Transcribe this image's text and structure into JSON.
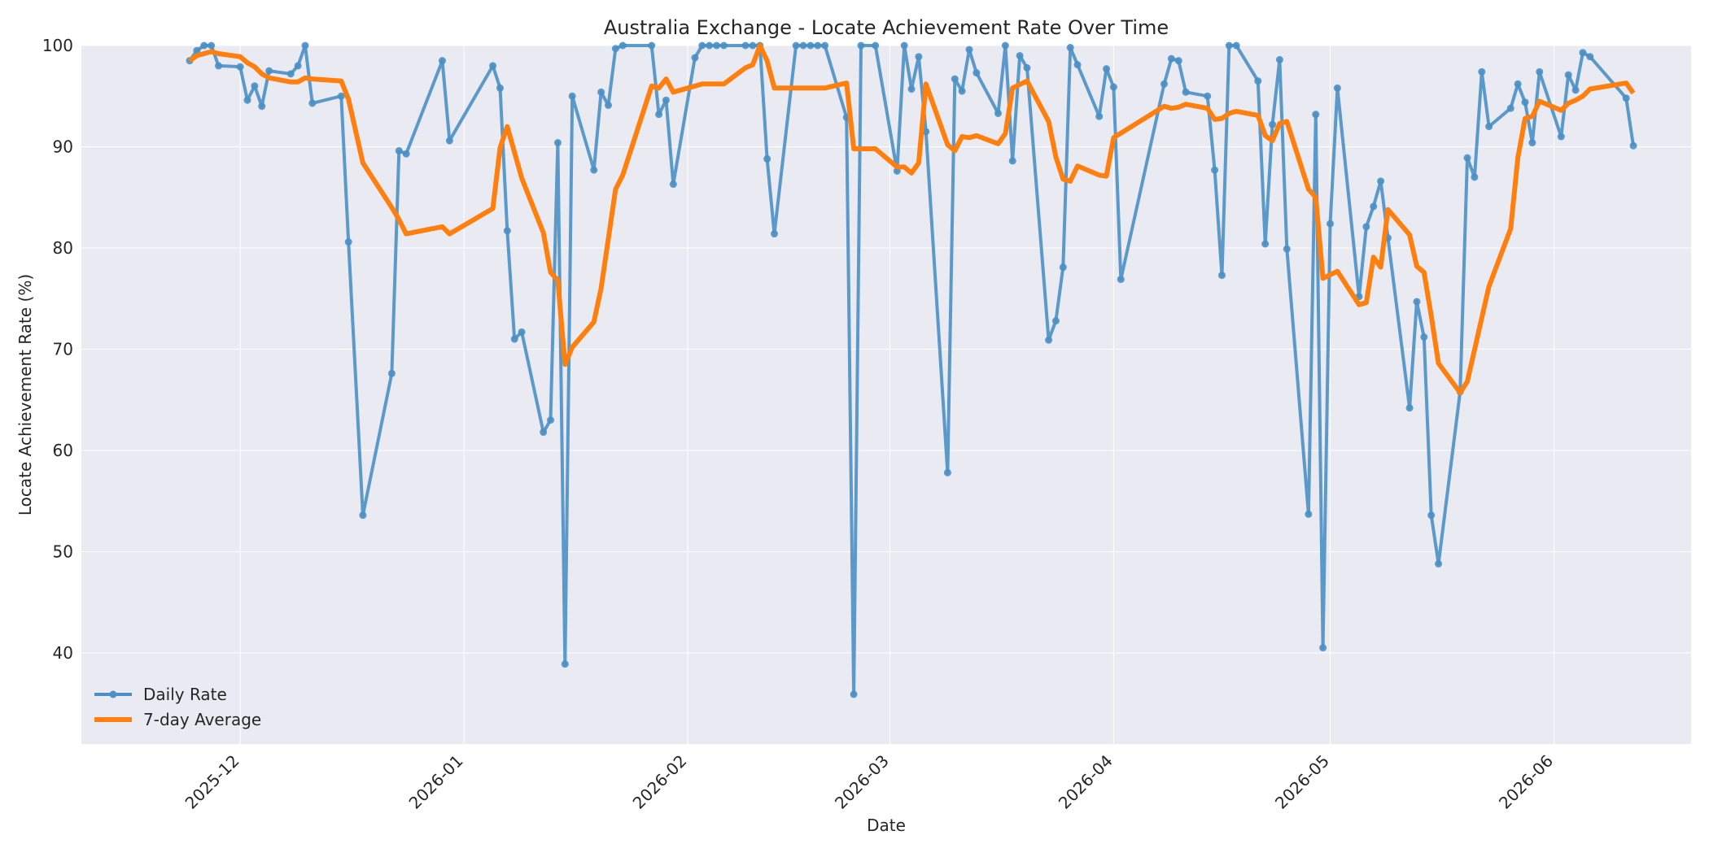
{
  "chart_data": {
    "type": "line",
    "title": "Australia Exchange - Locate Achievement Rate Over Time",
    "xlabel": "Date",
    "ylabel": "Locate Achievement Rate (%)",
    "x_range": [
      "2025-11-09",
      "2026-06-20"
    ],
    "ylim": [
      31,
      100
    ],
    "yticks": [
      40,
      50,
      60,
      70,
      80,
      90,
      100
    ],
    "xticks": [
      {
        "label": "2025-12",
        "date": "2025-12-01"
      },
      {
        "label": "2026-01",
        "date": "2026-01-01"
      },
      {
        "label": "2026-02",
        "date": "2026-02-01"
      },
      {
        "label": "2026-03",
        "date": "2026-03-01"
      },
      {
        "label": "2026-04",
        "date": "2026-04-01"
      },
      {
        "label": "2026-05",
        "date": "2026-05-01"
      },
      {
        "label": "2026-06",
        "date": "2026-06-01"
      }
    ],
    "grid": true,
    "legend_position": "lower-left",
    "series": [
      {
        "name": "Daily Rate",
        "color": "#4a90c4",
        "markers": true,
        "points": [
          [
            "2025-11-24",
            98.5
          ],
          [
            "2025-11-25",
            99.5
          ],
          [
            "2025-11-26",
            100.0
          ],
          [
            "2025-11-27",
            100.0
          ],
          [
            "2025-11-28",
            98.0
          ],
          [
            "2025-12-01",
            97.9
          ],
          [
            "2025-12-02",
            94.6
          ],
          [
            "2025-12-03",
            96.0
          ],
          [
            "2025-12-04",
            94.0
          ],
          [
            "2025-12-05",
            97.5
          ],
          [
            "2025-12-08",
            97.2
          ],
          [
            "2025-12-09",
            98.0
          ],
          [
            "2025-12-10",
            100.0
          ],
          [
            "2025-12-11",
            94.3
          ],
          [
            "2025-12-15",
            95.0
          ],
          [
            "2025-12-16",
            80.6
          ],
          [
            "2025-12-18",
            53.6
          ],
          [
            "2025-12-22",
            67.6
          ],
          [
            "2025-12-23",
            89.6
          ],
          [
            "2025-12-24",
            89.3
          ],
          [
            "2025-12-29",
            98.5
          ],
          [
            "2025-12-30",
            90.6
          ],
          [
            "2026-01-05",
            98.0
          ],
          [
            "2026-01-06",
            95.8
          ],
          [
            "2026-01-07",
            81.7
          ],
          [
            "2026-01-08",
            71.0
          ],
          [
            "2026-01-09",
            71.7
          ],
          [
            "2026-01-12",
            61.8
          ],
          [
            "2026-01-13",
            63.0
          ],
          [
            "2026-01-14",
            90.4
          ],
          [
            "2026-01-15",
            38.9
          ],
          [
            "2026-01-16",
            95.0
          ],
          [
            "2026-01-19",
            87.7
          ],
          [
            "2026-01-20",
            95.4
          ],
          [
            "2026-01-21",
            94.1
          ],
          [
            "2026-01-22",
            99.7
          ],
          [
            "2026-01-23",
            100.0
          ],
          [
            "2026-01-27",
            100.0
          ],
          [
            "2026-01-28",
            93.2
          ],
          [
            "2026-01-29",
            94.6
          ],
          [
            "2026-01-30",
            86.3
          ],
          [
            "2026-02-02",
            98.8
          ],
          [
            "2026-02-03",
            100.0
          ],
          [
            "2026-02-04",
            100.0
          ],
          [
            "2026-02-05",
            100.0
          ],
          [
            "2026-02-06",
            100.0
          ],
          [
            "2026-02-09",
            100.0
          ],
          [
            "2026-02-10",
            100.0
          ],
          [
            "2026-02-11",
            100.0
          ],
          [
            "2026-02-12",
            88.8
          ],
          [
            "2026-02-13",
            81.4
          ],
          [
            "2026-02-16",
            100.0
          ],
          [
            "2026-02-17",
            100.0
          ],
          [
            "2026-02-18",
            100.0
          ],
          [
            "2026-02-19",
            100.0
          ],
          [
            "2026-02-20",
            100.0
          ],
          [
            "2026-02-23",
            92.9
          ],
          [
            "2026-02-24",
            35.9
          ],
          [
            "2026-02-25",
            100.0
          ],
          [
            "2026-02-27",
            100.0
          ],
          [
            "2026-03-02",
            87.6
          ],
          [
            "2026-03-03",
            100.0
          ],
          [
            "2026-03-04",
            95.7
          ],
          [
            "2026-03-05",
            98.9
          ],
          [
            "2026-03-06",
            91.5
          ],
          [
            "2026-03-09",
            57.8
          ],
          [
            "2026-03-10",
            96.7
          ],
          [
            "2026-03-11",
            95.5
          ],
          [
            "2026-03-12",
            99.6
          ],
          [
            "2026-03-13",
            97.3
          ],
          [
            "2026-03-16",
            93.3
          ],
          [
            "2026-03-17",
            100.0
          ],
          [
            "2026-03-18",
            88.6
          ],
          [
            "2026-03-19",
            99.0
          ],
          [
            "2026-03-20",
            97.8
          ],
          [
            "2026-03-23",
            70.9
          ],
          [
            "2026-03-24",
            72.8
          ],
          [
            "2026-03-25",
            78.1
          ],
          [
            "2026-03-26",
            99.8
          ],
          [
            "2026-03-27",
            98.1
          ],
          [
            "2026-03-30",
            93.0
          ],
          [
            "2026-03-31",
            97.7
          ],
          [
            "2026-04-01",
            95.9
          ],
          [
            "2026-04-02",
            76.9
          ],
          [
            "2026-04-08",
            96.2
          ],
          [
            "2026-04-09",
            98.7
          ],
          [
            "2026-04-10",
            98.5
          ],
          [
            "2026-04-11",
            95.4
          ],
          [
            "2026-04-14",
            95.0
          ],
          [
            "2026-04-15",
            87.7
          ],
          [
            "2026-04-16",
            77.3
          ],
          [
            "2026-04-17",
            100.0
          ],
          [
            "2026-04-18",
            100.0
          ],
          [
            "2026-04-21",
            96.5
          ],
          [
            "2026-04-22",
            80.4
          ],
          [
            "2026-04-23",
            92.2
          ],
          [
            "2026-04-24",
            98.6
          ],
          [
            "2026-04-25",
            79.9
          ],
          [
            "2026-04-28",
            53.7
          ],
          [
            "2026-04-29",
            93.2
          ],
          [
            "2026-04-30",
            40.5
          ],
          [
            "2026-05-01",
            82.4
          ],
          [
            "2026-05-02",
            95.8
          ],
          [
            "2026-05-05",
            75.2
          ],
          [
            "2026-05-06",
            82.1
          ],
          [
            "2026-05-07",
            84.1
          ],
          [
            "2026-05-08",
            86.6
          ],
          [
            "2026-05-09",
            81.0
          ],
          [
            "2026-05-12",
            64.2
          ],
          [
            "2026-05-13",
            74.7
          ],
          [
            "2026-05-14",
            71.2
          ],
          [
            "2026-05-15",
            53.6
          ],
          [
            "2026-05-16",
            48.8
          ],
          [
            "2026-05-19",
            65.8
          ],
          [
            "2026-05-20",
            88.9
          ],
          [
            "2026-05-21",
            87.0
          ],
          [
            "2026-05-22",
            97.4
          ],
          [
            "2026-05-23",
            92.0
          ],
          [
            "2026-05-26",
            93.8
          ],
          [
            "2026-05-27",
            96.2
          ],
          [
            "2026-05-28",
            94.4
          ],
          [
            "2026-05-29",
            90.4
          ],
          [
            "2026-05-30",
            97.4
          ],
          [
            "2026-06-02",
            91.0
          ],
          [
            "2026-06-03",
            97.1
          ],
          [
            "2026-06-04",
            95.6
          ],
          [
            "2026-06-05",
            99.3
          ],
          [
            "2026-06-06",
            98.9
          ],
          [
            "2026-06-11",
            94.8
          ],
          [
            "2026-06-12",
            90.1
          ]
        ]
      },
      {
        "name": "7-day Average",
        "color": "#ff7f0e",
        "markers": false,
        "points": [
          [
            "2025-11-24",
            98.5
          ],
          [
            "2025-11-25",
            99.0
          ],
          [
            "2025-11-27",
            99.4
          ],
          [
            "2025-11-28",
            99.2
          ],
          [
            "2025-12-01",
            98.9
          ],
          [
            "2025-12-02",
            98.3
          ],
          [
            "2025-12-03",
            97.9
          ],
          [
            "2025-12-04",
            97.2
          ],
          [
            "2025-12-05",
            96.8
          ],
          [
            "2025-12-08",
            96.4
          ],
          [
            "2025-12-09",
            96.4
          ],
          [
            "2025-12-10",
            96.8
          ],
          [
            "2025-12-11",
            96.7
          ],
          [
            "2025-12-15",
            96.5
          ],
          [
            "2025-12-16",
            94.7
          ],
          [
            "2025-12-18",
            88.4
          ],
          [
            "2025-12-22",
            84.0
          ],
          [
            "2025-12-23",
            82.8
          ],
          [
            "2025-12-24",
            81.4
          ],
          [
            "2025-12-29",
            82.1
          ],
          [
            "2025-12-30",
            81.4
          ],
          [
            "2026-01-05",
            83.9
          ],
          [
            "2026-01-06",
            89.9
          ],
          [
            "2026-01-07",
            92.0
          ],
          [
            "2026-01-09",
            86.9
          ],
          [
            "2026-01-12",
            81.5
          ],
          [
            "2026-01-13",
            77.6
          ],
          [
            "2026-01-14",
            76.8
          ],
          [
            "2026-01-15",
            68.5
          ],
          [
            "2026-01-16",
            70.2
          ],
          [
            "2026-01-19",
            72.7
          ],
          [
            "2026-01-20",
            76.0
          ],
          [
            "2026-01-22",
            85.8
          ],
          [
            "2026-01-23",
            87.2
          ],
          [
            "2026-01-27",
            96.0
          ],
          [
            "2026-01-28",
            95.8
          ],
          [
            "2026-01-29",
            96.7
          ],
          [
            "2026-01-30",
            95.4
          ],
          [
            "2026-02-03",
            96.2
          ],
          [
            "2026-02-06",
            96.2
          ],
          [
            "2026-02-09",
            97.8
          ],
          [
            "2026-02-10",
            98.1
          ],
          [
            "2026-02-11",
            100.0
          ],
          [
            "2026-02-12",
            98.5
          ],
          [
            "2026-02-13",
            95.8
          ],
          [
            "2026-02-20",
            95.8
          ],
          [
            "2026-02-23",
            96.3
          ],
          [
            "2026-02-24",
            89.8
          ],
          [
            "2026-02-27",
            89.8
          ],
          [
            "2026-03-02",
            88.0
          ],
          [
            "2026-03-03",
            88.0
          ],
          [
            "2026-03-04",
            87.4
          ],
          [
            "2026-03-05",
            88.4
          ],
          [
            "2026-03-06",
            96.2
          ],
          [
            "2026-03-09",
            90.2
          ],
          [
            "2026-03-10",
            89.6
          ],
          [
            "2026-03-11",
            91.0
          ],
          [
            "2026-03-12",
            90.9
          ],
          [
            "2026-03-13",
            91.1
          ],
          [
            "2026-03-16",
            90.3
          ],
          [
            "2026-03-17",
            91.3
          ],
          [
            "2026-03-18",
            95.8
          ],
          [
            "2026-03-20",
            96.5
          ],
          [
            "2026-03-23",
            92.5
          ],
          [
            "2026-03-24",
            89.0
          ],
          [
            "2026-03-25",
            86.8
          ],
          [
            "2026-03-26",
            86.6
          ],
          [
            "2026-03-27",
            88.1
          ],
          [
            "2026-03-30",
            87.2
          ],
          [
            "2026-03-31",
            87.1
          ],
          [
            "2026-04-01",
            90.9
          ],
          [
            "2026-04-08",
            94.0
          ],
          [
            "2026-04-09",
            93.8
          ],
          [
            "2026-04-10",
            93.9
          ],
          [
            "2026-04-11",
            94.2
          ],
          [
            "2026-04-14",
            93.8
          ],
          [
            "2026-04-15",
            92.7
          ],
          [
            "2026-04-16",
            92.8
          ],
          [
            "2026-04-17",
            93.3
          ],
          [
            "2026-04-18",
            93.5
          ],
          [
            "2026-04-21",
            93.1
          ],
          [
            "2026-04-22",
            91.1
          ],
          [
            "2026-04-23",
            90.6
          ],
          [
            "2026-04-24",
            92.3
          ],
          [
            "2026-04-25",
            92.5
          ],
          [
            "2026-04-28",
            85.8
          ],
          [
            "2026-04-29",
            85.0
          ],
          [
            "2026-04-30",
            77.0
          ],
          [
            "2026-05-02",
            77.7
          ],
          [
            "2026-05-05",
            74.4
          ],
          [
            "2026-05-06",
            74.6
          ],
          [
            "2026-05-07",
            79.1
          ],
          [
            "2026-05-08",
            78.1
          ],
          [
            "2026-05-09",
            83.8
          ],
          [
            "2026-05-12",
            81.3
          ],
          [
            "2026-05-13",
            78.2
          ],
          [
            "2026-05-14",
            77.6
          ],
          [
            "2026-05-15",
            73.3
          ],
          [
            "2026-05-16",
            68.6
          ],
          [
            "2026-05-19",
            65.7
          ],
          [
            "2026-05-20",
            66.8
          ],
          [
            "2026-05-22",
            73.1
          ],
          [
            "2026-05-23",
            76.2
          ],
          [
            "2026-05-26",
            81.9
          ],
          [
            "2026-05-27",
            88.9
          ],
          [
            "2026-05-28",
            92.8
          ],
          [
            "2026-05-29",
            93.0
          ],
          [
            "2026-05-30",
            94.5
          ],
          [
            "2026-06-02",
            93.6
          ],
          [
            "2026-06-03",
            94.3
          ],
          [
            "2026-06-04",
            94.6
          ],
          [
            "2026-06-05",
            95.0
          ],
          [
            "2026-06-06",
            95.7
          ],
          [
            "2026-06-11",
            96.3
          ],
          [
            "2026-06-12",
            95.3
          ]
        ]
      }
    ]
  }
}
